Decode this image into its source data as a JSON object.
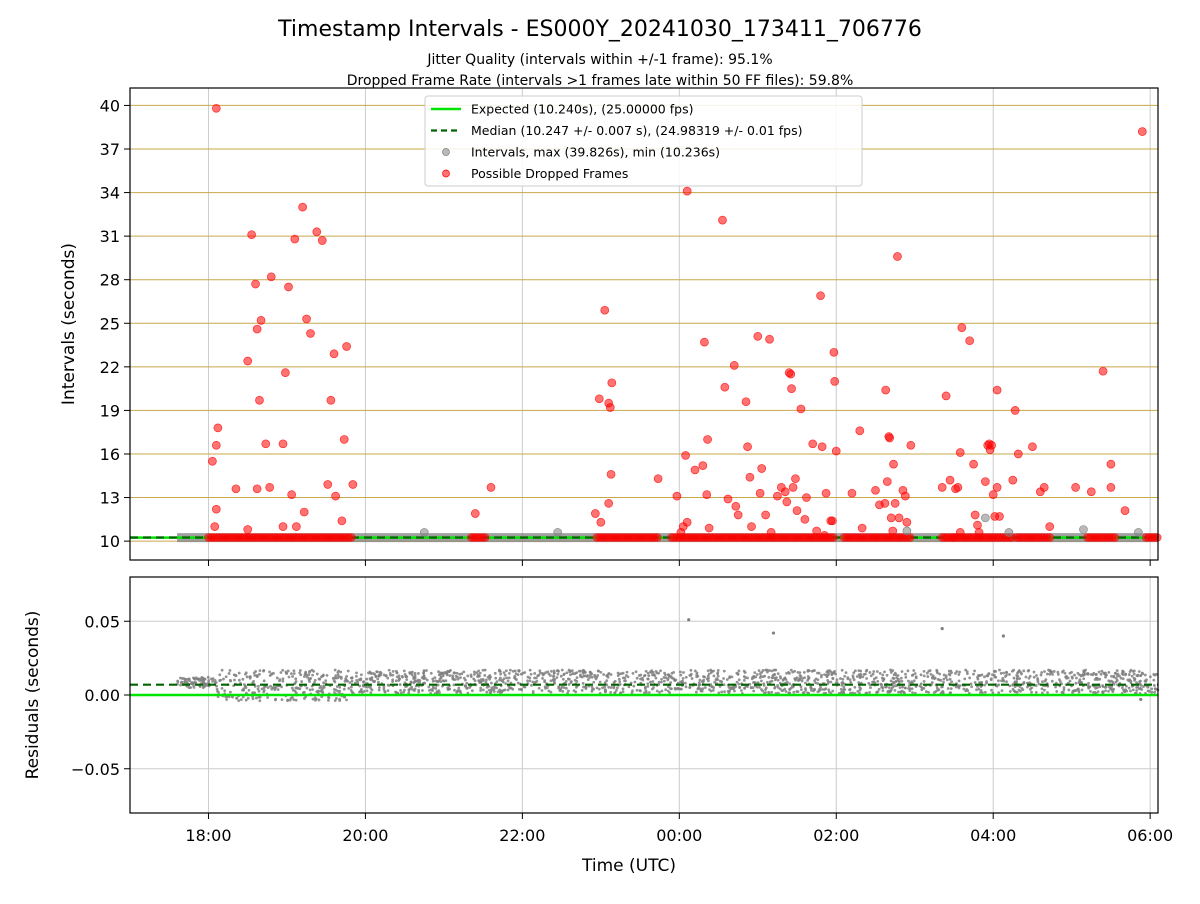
{
  "title": "Timestamp Intervals - ES000Y_20241030_173411_706776",
  "subtitle_1": "Jitter Quality (intervals within +/-1 frame): 95.1%",
  "subtitle_2": "Dropped Frame Rate (intervals >1 frames late within 50 FF files): 59.8%",
  "colors": {
    "expected": "#00e600",
    "median": "#006400",
    "intervals": "#808080",
    "dropped": "#ff0000",
    "grid_top": "#c8a84a",
    "grid": "#cccccc"
  },
  "chart_data": [
    {
      "type": "scatter",
      "ylabel": "Intervals (seconds)",
      "xlim_hours": [
        17.0,
        30.1
      ],
      "ylim": [
        8.7,
        41.2
      ],
      "yticks": [
        10,
        13,
        16,
        19,
        22,
        25,
        28,
        31,
        34,
        37,
        40
      ],
      "ytick_labels": [
        "10",
        "13",
        "16",
        "19",
        "22",
        "25",
        "28",
        "31",
        "34",
        "37",
        "40"
      ],
      "horizontal_grid": true,
      "legend_position": "top-center",
      "legend": [
        {
          "label": "Expected (10.240s), (25.00000 fps)",
          "style": "solid-line",
          "color": "#00e600"
        },
        {
          "label": "Median (10.247 +/- 0.007 s), (24.98319 +/- 0.01 fps)",
          "style": "dashed-line",
          "color": "#006400"
        },
        {
          "label": "Intervals, max (39.826s), min (10.236s)",
          "style": "marker",
          "color": "#808080"
        },
        {
          "label": "Possible Dropped Frames",
          "style": "marker",
          "color": "#ff0000"
        }
      ],
      "expected_value": 10.24,
      "median_value": 10.247,
      "baseline_segments_hours": [
        [
          17.6,
          30.1
        ]
      ],
      "gray_points": [
        {
          "x": 20.75,
          "y": 10.6
        },
        {
          "x": 22.45,
          "y": 10.6
        },
        {
          "x": 26.9,
          "y": 10.7
        },
        {
          "x": 27.9,
          "y": 11.6
        },
        {
          "x": 28.2,
          "y": 10.6
        },
        {
          "x": 29.15,
          "y": 10.8
        },
        {
          "x": 29.85,
          "y": 10.6
        }
      ],
      "dropped_points": [
        {
          "x": 18.1,
          "y": 39.8
        },
        {
          "x": 18.05,
          "y": 15.5
        },
        {
          "x": 18.1,
          "y": 16.6
        },
        {
          "x": 18.12,
          "y": 17.8
        },
        {
          "x": 18.1,
          "y": 12.2
        },
        {
          "x": 18.08,
          "y": 11.0
        },
        {
          "x": 18.35,
          "y": 13.6
        },
        {
          "x": 18.5,
          "y": 22.4
        },
        {
          "x": 18.55,
          "y": 31.1
        },
        {
          "x": 18.6,
          "y": 27.7
        },
        {
          "x": 18.62,
          "y": 24.6
        },
        {
          "x": 18.65,
          "y": 19.7
        },
        {
          "x": 18.67,
          "y": 25.2
        },
        {
          "x": 18.73,
          "y": 16.7
        },
        {
          "x": 18.78,
          "y": 13.7
        },
        {
          "x": 18.8,
          "y": 28.2
        },
        {
          "x": 18.62,
          "y": 13.6
        },
        {
          "x": 18.95,
          "y": 16.7
        },
        {
          "x": 19.02,
          "y": 27.5
        },
        {
          "x": 18.98,
          "y": 21.6
        },
        {
          "x": 19.06,
          "y": 13.2
        },
        {
          "x": 19.1,
          "y": 30.8
        },
        {
          "x": 19.2,
          "y": 33.0
        },
        {
          "x": 19.25,
          "y": 25.3
        },
        {
          "x": 19.3,
          "y": 24.3
        },
        {
          "x": 19.38,
          "y": 31.3
        },
        {
          "x": 19.45,
          "y": 30.7
        },
        {
          "x": 19.52,
          "y": 13.9
        },
        {
          "x": 19.56,
          "y": 19.7
        },
        {
          "x": 19.6,
          "y": 22.9
        },
        {
          "x": 19.62,
          "y": 13.1
        },
        {
          "x": 19.73,
          "y": 17.0
        },
        {
          "x": 19.76,
          "y": 23.4
        },
        {
          "x": 19.84,
          "y": 13.9
        },
        {
          "x": 19.22,
          "y": 12.0
        },
        {
          "x": 18.95,
          "y": 11.0
        },
        {
          "x": 19.12,
          "y": 11.0
        },
        {
          "x": 19.7,
          "y": 11.4
        },
        {
          "x": 18.5,
          "y": 10.8
        },
        {
          "x": 21.4,
          "y": 11.9
        },
        {
          "x": 21.6,
          "y": 13.7
        },
        {
          "x": 22.93,
          "y": 11.9
        },
        {
          "x": 22.98,
          "y": 19.8
        },
        {
          "x": 23.05,
          "y": 25.9
        },
        {
          "x": 23.1,
          "y": 19.5
        },
        {
          "x": 23.12,
          "y": 19.2
        },
        {
          "x": 23.14,
          "y": 20.9
        },
        {
          "x": 23.13,
          "y": 14.6
        },
        {
          "x": 23.1,
          "y": 12.6
        },
        {
          "x": 23.0,
          "y": 11.3
        },
        {
          "x": 23.73,
          "y": 14.3
        },
        {
          "x": 23.97,
          "y": 13.1
        },
        {
          "x": 24.05,
          "y": 11.0
        },
        {
          "x": 24.08,
          "y": 15.9
        },
        {
          "x": 24.1,
          "y": 34.1
        },
        {
          "x": 24.2,
          "y": 14.9
        },
        {
          "x": 24.3,
          "y": 15.2
        },
        {
          "x": 24.35,
          "y": 13.2
        },
        {
          "x": 24.02,
          "y": 10.6
        },
        {
          "x": 24.1,
          "y": 11.3
        },
        {
          "x": 24.32,
          "y": 23.7
        },
        {
          "x": 24.36,
          "y": 17.0
        },
        {
          "x": 24.38,
          "y": 10.9
        },
        {
          "x": 24.55,
          "y": 32.1
        },
        {
          "x": 24.58,
          "y": 20.6
        },
        {
          "x": 24.62,
          "y": 12.9
        },
        {
          "x": 24.7,
          "y": 22.1
        },
        {
          "x": 24.72,
          "y": 12.4
        },
        {
          "x": 24.75,
          "y": 11.8
        },
        {
          "x": 24.85,
          "y": 19.6
        },
        {
          "x": 24.87,
          "y": 16.5
        },
        {
          "x": 24.9,
          "y": 14.4
        },
        {
          "x": 24.92,
          "y": 11.0
        },
        {
          "x": 25.0,
          "y": 24.1
        },
        {
          "x": 25.03,
          "y": 13.3
        },
        {
          "x": 25.05,
          "y": 15.0
        },
        {
          "x": 25.15,
          "y": 23.9
        },
        {
          "x": 25.1,
          "y": 11.8
        },
        {
          "x": 25.17,
          "y": 10.6
        },
        {
          "x": 25.25,
          "y": 13.1
        },
        {
          "x": 25.3,
          "y": 13.7
        },
        {
          "x": 25.35,
          "y": 13.4
        },
        {
          "x": 25.37,
          "y": 12.7
        },
        {
          "x": 25.4,
          "y": 21.6
        },
        {
          "x": 25.42,
          "y": 21.5
        },
        {
          "x": 25.43,
          "y": 20.5
        },
        {
          "x": 25.45,
          "y": 13.7
        },
        {
          "x": 25.48,
          "y": 14.3
        },
        {
          "x": 25.5,
          "y": 12.1
        },
        {
          "x": 25.55,
          "y": 19.1
        },
        {
          "x": 25.6,
          "y": 11.5
        },
        {
          "x": 25.62,
          "y": 13.0
        },
        {
          "x": 25.7,
          "y": 16.7
        },
        {
          "x": 25.8,
          "y": 26.9
        },
        {
          "x": 25.82,
          "y": 16.5
        },
        {
          "x": 25.87,
          "y": 13.3
        },
        {
          "x": 25.93,
          "y": 11.4
        },
        {
          "x": 25.95,
          "y": 11.4
        },
        {
          "x": 25.97,
          "y": 23.0
        },
        {
          "x": 25.98,
          "y": 21.0
        },
        {
          "x": 26.0,
          "y": 16.2
        },
        {
          "x": 25.75,
          "y": 10.7
        },
        {
          "x": 25.85,
          "y": 10.4
        },
        {
          "x": 26.2,
          "y": 13.3
        },
        {
          "x": 26.3,
          "y": 17.6
        },
        {
          "x": 26.33,
          "y": 10.9
        },
        {
          "x": 26.5,
          "y": 13.5
        },
        {
          "x": 26.55,
          "y": 12.5
        },
        {
          "x": 26.62,
          "y": 12.6
        },
        {
          "x": 26.63,
          "y": 20.4
        },
        {
          "x": 26.65,
          "y": 14.1
        },
        {
          "x": 26.67,
          "y": 17.2
        },
        {
          "x": 26.68,
          "y": 17.1
        },
        {
          "x": 26.7,
          "y": 11.6
        },
        {
          "x": 26.73,
          "y": 15.3
        },
        {
          "x": 26.75,
          "y": 12.6
        },
        {
          "x": 26.78,
          "y": 29.6
        },
        {
          "x": 26.8,
          "y": 11.6
        },
        {
          "x": 26.85,
          "y": 13.5
        },
        {
          "x": 26.9,
          "y": 11.3
        },
        {
          "x": 26.95,
          "y": 16.6
        },
        {
          "x": 26.88,
          "y": 13.1
        },
        {
          "x": 26.72,
          "y": 10.7
        },
        {
          "x": 27.35,
          "y": 13.7
        },
        {
          "x": 27.4,
          "y": 20.0
        },
        {
          "x": 27.45,
          "y": 14.2
        },
        {
          "x": 27.52,
          "y": 13.6
        },
        {
          "x": 27.55,
          "y": 13.7
        },
        {
          "x": 27.58,
          "y": 16.1
        },
        {
          "x": 27.6,
          "y": 24.7
        },
        {
          "x": 27.7,
          "y": 23.8
        },
        {
          "x": 27.75,
          "y": 15.3
        },
        {
          "x": 27.77,
          "y": 11.8
        },
        {
          "x": 27.8,
          "y": 11.1
        },
        {
          "x": 27.82,
          "y": 10.6
        },
        {
          "x": 27.9,
          "y": 14.1
        },
        {
          "x": 27.93,
          "y": 16.6
        },
        {
          "x": 27.95,
          "y": 16.7
        },
        {
          "x": 27.96,
          "y": 16.3
        },
        {
          "x": 27.98,
          "y": 16.6
        },
        {
          "x": 28.0,
          "y": 13.2
        },
        {
          "x": 28.02,
          "y": 11.7
        },
        {
          "x": 28.05,
          "y": 13.7
        },
        {
          "x": 28.05,
          "y": 20.4
        },
        {
          "x": 28.08,
          "y": 11.7
        },
        {
          "x": 27.58,
          "y": 10.6
        },
        {
          "x": 28.25,
          "y": 14.2
        },
        {
          "x": 28.28,
          "y": 19.0
        },
        {
          "x": 28.32,
          "y": 16.0
        },
        {
          "x": 28.5,
          "y": 16.5
        },
        {
          "x": 28.6,
          "y": 13.4
        },
        {
          "x": 28.65,
          "y": 13.7
        },
        {
          "x": 28.72,
          "y": 11.0
        },
        {
          "x": 29.05,
          "y": 13.7
        },
        {
          "x": 29.25,
          "y": 13.4
        },
        {
          "x": 29.4,
          "y": 21.7
        },
        {
          "x": 29.5,
          "y": 15.3
        },
        {
          "x": 29.5,
          "y": 13.7
        },
        {
          "x": 29.68,
          "y": 12.1
        },
        {
          "x": 29.9,
          "y": 38.2
        }
      ],
      "dropped_clusters_hours": [
        [
          18.0,
          19.85
        ],
        [
          21.35,
          21.55
        ],
        [
          22.95,
          23.75
        ],
        [
          23.9,
          26.0
        ],
        [
          26.1,
          26.95
        ],
        [
          27.35,
          27.5
        ],
        [
          27.5,
          28.25
        ],
        [
          28.3,
          28.75
        ],
        [
          29.2,
          29.55
        ],
        [
          29.95,
          30.1
        ]
      ]
    },
    {
      "type": "scatter",
      "xlabel": "Time (UTC)",
      "ylabel": "Residuals (seconds)",
      "xlim_hours": [
        17.0,
        30.1
      ],
      "ylim": [
        -0.08,
        0.08
      ],
      "yticks": [
        -0.05,
        0.0,
        0.05
      ],
      "ytick_labels": [
        "−0.05",
        "0.00",
        "0.05"
      ],
      "xticks_hours": [
        18,
        20,
        22,
        24,
        26,
        28,
        30
      ],
      "xtick_labels": [
        "18:00",
        "20:00",
        "22:00",
        "00:00",
        "02:00",
        "04:00",
        "06:00"
      ],
      "expected_residual": 0.0,
      "median_residual": 0.007,
      "residual_band": [
        {
          "x_start": 17.6,
          "x_end": 18.1,
          "low": 0.005,
          "high": 0.012
        },
        {
          "x_start": 18.1,
          "x_end": 19.8,
          "low": -0.004,
          "high": 0.017
        },
        {
          "x_start": 19.8,
          "x_end": 30.1,
          "low": 0.001,
          "high": 0.017
        }
      ],
      "outliers": [
        {
          "x": 24.12,
          "y": 0.051
        },
        {
          "x": 25.2,
          "y": 0.042
        },
        {
          "x": 27.35,
          "y": 0.045
        },
        {
          "x": 28.13,
          "y": 0.04
        },
        {
          "x": 29.88,
          "y": -0.003
        }
      ]
    }
  ]
}
